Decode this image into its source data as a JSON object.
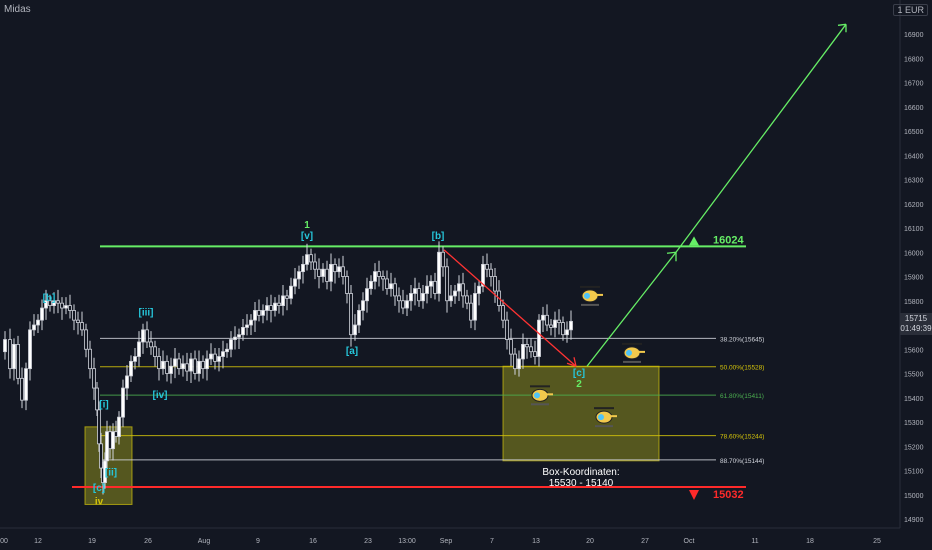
{
  "app": {
    "symbol": "Midas",
    "currency": "1 EUR",
    "last_price": "15715",
    "countdown": "01:49:39"
  },
  "chart_data": {
    "type": "candlestick",
    "y_ticks": [
      14900,
      15000,
      15100,
      15200,
      15300,
      15400,
      15500,
      15600,
      15700,
      15800,
      15900,
      16000,
      16100,
      16200,
      16300,
      16400,
      16500,
      16600,
      16700,
      16800,
      16900
    ],
    "x_ticks": [
      "00",
      "12",
      "19",
      "26",
      "Aug",
      "9",
      "16",
      "23",
      "13:00",
      "Sep",
      "7",
      "13",
      "20",
      "27",
      "Oct",
      "11",
      "18",
      "25"
    ],
    "ylim": [
      14860,
      16980
    ],
    "price_path": [
      [
        0,
        15590
      ],
      [
        5,
        15640
      ],
      [
        10,
        15520
      ],
      [
        14,
        15620
      ],
      [
        18,
        15480
      ],
      [
        22,
        15390
      ],
      [
        26,
        15520
      ],
      [
        30,
        15680
      ],
      [
        34,
        15700
      ],
      [
        38,
        15720
      ],
      [
        42,
        15770
      ],
      [
        46,
        15800
      ],
      [
        50,
        15780
      ],
      [
        54,
        15800
      ],
      [
        58,
        15790
      ],
      [
        62,
        15770
      ],
      [
        66,
        15780
      ],
      [
        70,
        15760
      ],
      [
        74,
        15720
      ],
      [
        78,
        15710
      ],
      [
        82,
        15680
      ],
      [
        86,
        15600
      ],
      [
        90,
        15520
      ],
      [
        94,
        15440
      ],
      [
        97,
        15350
      ],
      [
        99,
        15210
      ],
      [
        101,
        15110
      ],
      [
        103,
        15050
      ],
      [
        105,
        15140
      ],
      [
        107,
        15260
      ],
      [
        110,
        15190
      ],
      [
        113,
        15260
      ],
      [
        116,
        15240
      ],
      [
        119,
        15320
      ],
      [
        123,
        15440
      ],
      [
        127,
        15490
      ],
      [
        131,
        15550
      ],
      [
        135,
        15570
      ],
      [
        139,
        15630
      ],
      [
        143,
        15680
      ],
      [
        147,
        15630
      ],
      [
        151,
        15610
      ],
      [
        155,
        15570
      ],
      [
        159,
        15520
      ],
      [
        163,
        15550
      ],
      [
        167,
        15500
      ],
      [
        171,
        15530
      ],
      [
        175,
        15560
      ],
      [
        179,
        15520
      ],
      [
        183,
        15540
      ],
      [
        187,
        15510
      ],
      [
        191,
        15560
      ],
      [
        195,
        15500
      ],
      [
        199,
        15550
      ],
      [
        203,
        15520
      ],
      [
        207,
        15560
      ],
      [
        211,
        15580
      ],
      [
        215,
        15550
      ],
      [
        219,
        15570
      ],
      [
        223,
        15590
      ],
      [
        227,
        15600
      ],
      [
        231,
        15640
      ],
      [
        235,
        15650
      ],
      [
        239,
        15660
      ],
      [
        243,
        15690
      ],
      [
        247,
        15700
      ],
      [
        251,
        15720
      ],
      [
        255,
        15760
      ],
      [
        259,
        15740
      ],
      [
        263,
        15760
      ],
      [
        267,
        15780
      ],
      [
        271,
        15760
      ],
      [
        275,
        15790
      ],
      [
        279,
        15780
      ],
      [
        283,
        15820
      ],
      [
        287,
        15810
      ],
      [
        291,
        15860
      ],
      [
        295,
        15890
      ],
      [
        299,
        15920
      ],
      [
        303,
        15950
      ],
      [
        307,
        15990
      ],
      [
        311,
        15960
      ],
      [
        315,
        15930
      ],
      [
        319,
        15900
      ],
      [
        323,
        15930
      ],
      [
        327,
        15880
      ],
      [
        331,
        15950
      ],
      [
        335,
        15920
      ],
      [
        339,
        15940
      ],
      [
        343,
        15900
      ],
      [
        347,
        15830
      ],
      [
        351,
        15660
      ],
      [
        355,
        15700
      ],
      [
        359,
        15760
      ],
      [
        363,
        15800
      ],
      [
        367,
        15850
      ],
      [
        371,
        15880
      ],
      [
        375,
        15920
      ],
      [
        379,
        15900
      ],
      [
        383,
        15890
      ],
      [
        387,
        15850
      ],
      [
        391,
        15870
      ],
      [
        395,
        15820
      ],
      [
        399,
        15800
      ],
      [
        403,
        15770
      ],
      [
        407,
        15800
      ],
      [
        411,
        15830
      ],
      [
        415,
        15850
      ],
      [
        419,
        15800
      ],
      [
        423,
        15830
      ],
      [
        427,
        15860
      ],
      [
        431,
        15880
      ],
      [
        435,
        15830
      ],
      [
        439,
        16000
      ],
      [
        443,
        15940
      ],
      [
        447,
        15800
      ],
      [
        451,
        15820
      ],
      [
        455,
        15840
      ],
      [
        459,
        15870
      ],
      [
        463,
        15820
      ],
      [
        467,
        15790
      ],
      [
        471,
        15720
      ],
      [
        475,
        15830
      ],
      [
        479,
        15860
      ],
      [
        483,
        15950
      ],
      [
        487,
        15930
      ],
      [
        491,
        15900
      ],
      [
        495,
        15840
      ],
      [
        499,
        15780
      ],
      [
        503,
        15720
      ],
      [
        507,
        15640
      ],
      [
        511,
        15580
      ],
      [
        515,
        15520
      ],
      [
        519,
        15560
      ],
      [
        523,
        15620
      ],
      [
        527,
        15610
      ],
      [
        531,
        15590
      ],
      [
        535,
        15570
      ],
      [
        539,
        15720
      ],
      [
        543,
        15740
      ],
      [
        547,
        15700
      ],
      [
        551,
        15690
      ],
      [
        555,
        15720
      ],
      [
        559,
        15710
      ],
      [
        563,
        15660
      ],
      [
        567,
        15680
      ],
      [
        571,
        15715
      ]
    ],
    "fibs": [
      {
        "label": "38.20%(15645)",
        "value": 15645,
        "color": "#d1d4dc"
      },
      {
        "label": "50.00%(15528)",
        "value": 15528,
        "color": "#d4c40a"
      },
      {
        "label": "61.80%(15411)",
        "value": 15411,
        "color": "#4caf50"
      },
      {
        "label": "78.60%(15244)",
        "value": 15244,
        "color": "#d4c40a"
      },
      {
        "label": "88.70%(15144)",
        "value": 15144,
        "color": "#d1d4dc"
      }
    ],
    "resistance": {
      "value": 16024,
      "label": "16024",
      "color": "#66ee66"
    },
    "support": {
      "value": 15032,
      "label": "15032",
      "color": "#ff2a2a"
    },
    "boxes": [
      {
        "y1": 15140,
        "y2": 15530,
        "x1": 503,
        "x2": 659,
        "label": "Box-Koordinaten:",
        "label2": "15530 - 15140"
      },
      {
        "y1": 14960,
        "y2": 15280,
        "x1": 85,
        "x2": 132
      }
    ],
    "wave_labels": [
      {
        "text": "[b]",
        "x": 49,
        "y": 15800,
        "color": "#26c6da"
      },
      {
        "text": "[iii]",
        "x": 146,
        "y": 15740,
        "color": "#26c6da"
      },
      {
        "text": "[iv]",
        "x": 160,
        "y": 15400,
        "color": "#26c6da"
      },
      {
        "text": "[i]",
        "x": 104,
        "y": 15360,
        "color": "#26c6da"
      },
      {
        "text": "[ii]",
        "x": 111,
        "y": 15080,
        "color": "#26c6da"
      },
      {
        "text": "[c]",
        "x": 99,
        "y": 15015,
        "color": "#26c6da"
      },
      {
        "text": "iv",
        "x": 99,
        "y": 14960,
        "color": "#d4c40a"
      },
      {
        "text": "1",
        "x": 307,
        "y": 16100,
        "color": "#66ee66"
      },
      {
        "text": "[v]",
        "x": 307,
        "y": 16055,
        "color": "#26c6da"
      },
      {
        "text": "[b]",
        "x": 438,
        "y": 16055,
        "color": "#26c6da"
      },
      {
        "text": "[a]",
        "x": 352,
        "y": 15580,
        "color": "#26c6da"
      },
      {
        "text": "[c]",
        "x": 579,
        "y": 15490,
        "color": "#26c6da"
      },
      {
        "text": "2",
        "x": 579,
        "y": 15445,
        "color": "#66ee66"
      }
    ],
    "arrows": [
      {
        "x1": 444,
        "y1": 16010,
        "x2": 576,
        "y2": 15530,
        "color": "#ff3333"
      },
      {
        "x1": 587,
        "y1": 15530,
        "x2": 676,
        "y2": 16000,
        "color": "#66ee66"
      },
      {
        "x1": 676,
        "y1": 16000,
        "x2": 846,
        "y2": 16940,
        "color": "#66ee66"
      }
    ],
    "helicopters": [
      {
        "x": 590,
        "y": 15820
      },
      {
        "x": 632,
        "y": 15585
      },
      {
        "x": 540,
        "y": 15410
      },
      {
        "x": 604,
        "y": 15320
      }
    ]
  }
}
